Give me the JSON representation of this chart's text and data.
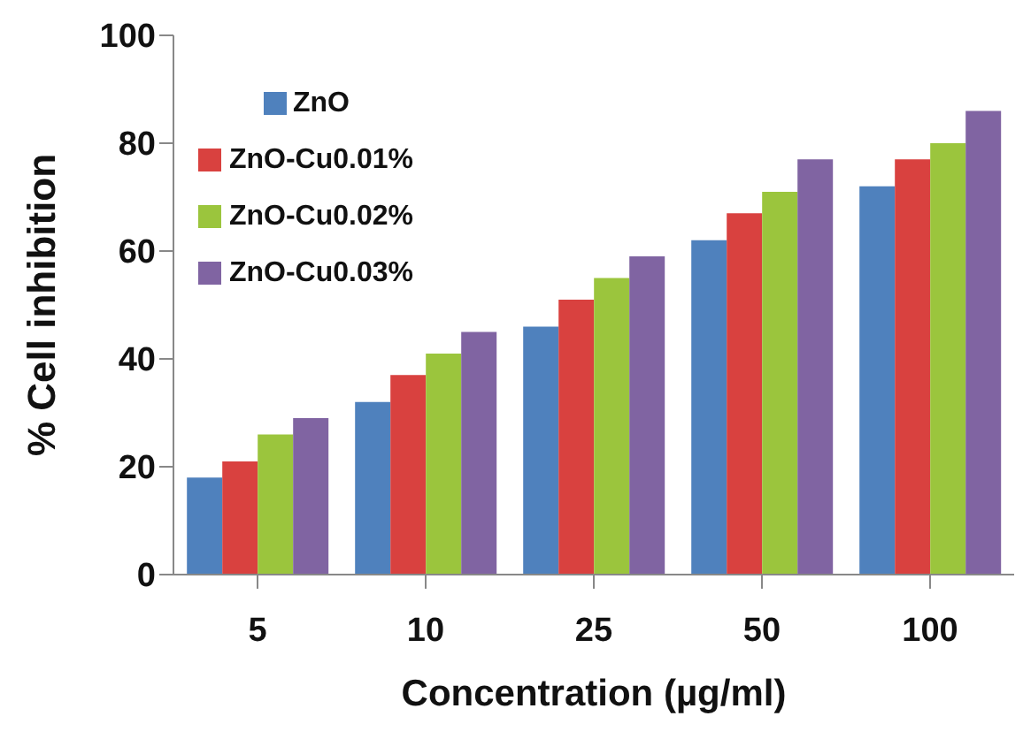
{
  "chart_data": {
    "type": "bar",
    "xlabel": "Concentration (µg/ml)",
    "ylabel": "% Cell inhibition",
    "categories": [
      "5",
      "10",
      "25",
      "50",
      "100"
    ],
    "series": [
      {
        "name": "ZnO",
        "color": "#4f81bd",
        "values": [
          18,
          32,
          46,
          62,
          72
        ]
      },
      {
        "name": "ZnO-Cu0.01%",
        "color": "#d9413f",
        "values": [
          21,
          37,
          51,
          67,
          77
        ]
      },
      {
        "name": "ZnO-Cu0.02%",
        "color": "#9bc53d",
        "values": [
          26,
          41,
          55,
          71,
          80
        ]
      },
      {
        "name": "ZnO-Cu0.03%",
        "color": "#8064a2",
        "values": [
          29,
          45,
          59,
          77,
          86
        ]
      }
    ],
    "ylim": [
      0,
      100
    ],
    "yticks": [
      0,
      20,
      40,
      60,
      80,
      100
    ],
    "grid": false,
    "legend": "top left"
  }
}
